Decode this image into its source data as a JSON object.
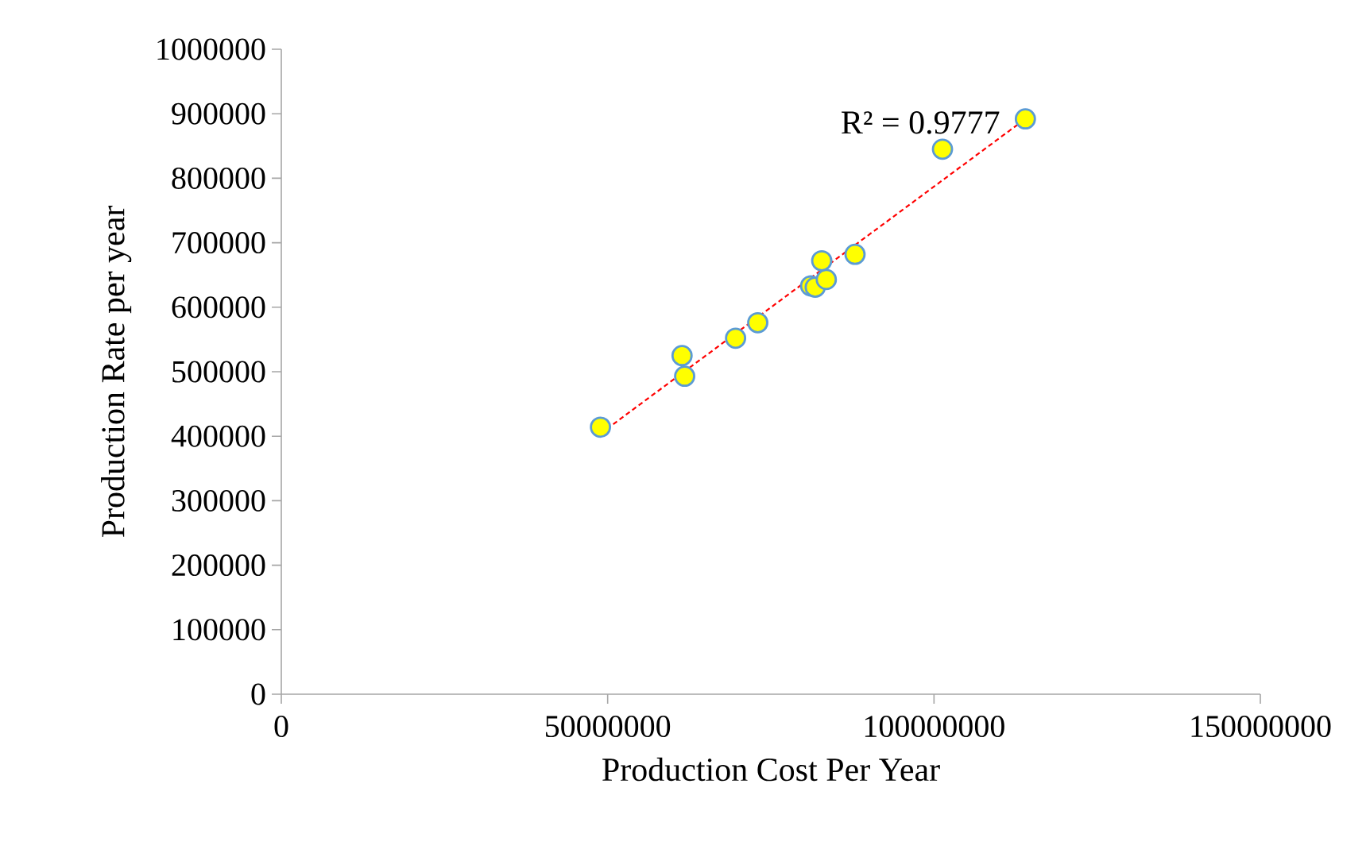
{
  "chart_data": {
    "type": "scatter",
    "xlabel": "Production Cost Per Year",
    "ylabel": "Production Rate per year",
    "annotations": [
      "R² = 0.9777"
    ],
    "xlim": [
      0,
      150000000
    ],
    "xticks": [
      0,
      50000000,
      100000000,
      150000000
    ],
    "ylim": [
      0,
      1000000
    ],
    "yticks": [
      0,
      100000,
      200000,
      300000,
      400000,
      500000,
      600000,
      700000,
      800000,
      900000,
      1000000
    ],
    "series": [
      {
        "color": "#ffff00",
        "marker": "circle",
        "x": [
          48900000,
          61400000,
          61800000,
          69600000,
          73000000,
          81100000,
          81800000,
          83500000,
          82800000,
          87900000,
          101300000,
          114000000
        ],
        "values": [
          414000,
          525000,
          493000,
          552000,
          576000,
          633000,
          631000,
          643000,
          672000,
          682000,
          845000,
          892000
        ]
      },
      {
        "type": "line",
        "color": "#ff0000",
        "marker": "none",
        "line_style": "dashed",
        "x": [
          48900000,
          114000000
        ],
        "values": [
          404000,
          892000
        ]
      }
    ]
  }
}
